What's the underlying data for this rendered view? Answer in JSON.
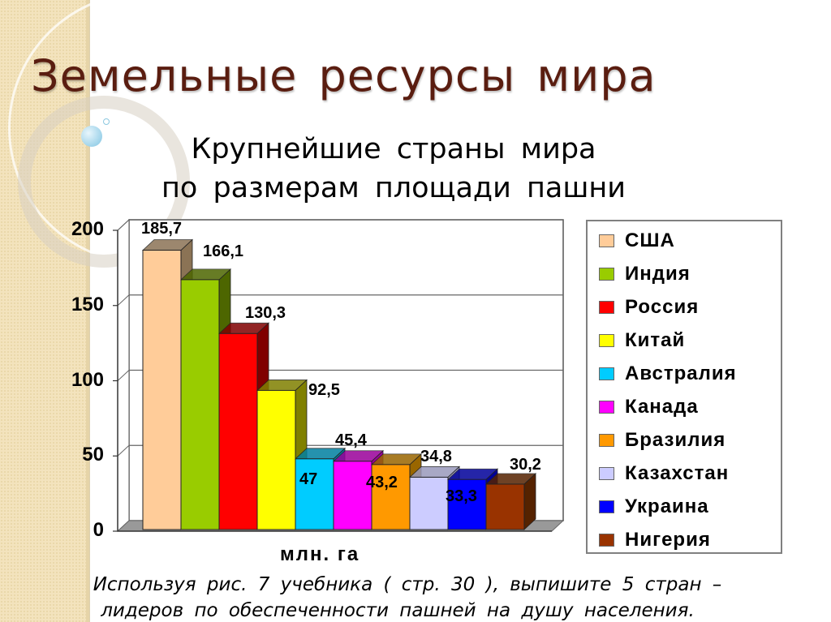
{
  "slide": {
    "title": "Земельные ресурсы мира",
    "subtitle_line1": "Крупнейшие страны мира",
    "subtitle_line2": "по размерам площади пашни",
    "caption_line1": "Используя рис. 7 учебника ( стр. 30 ), выпишите 5 стран –",
    "caption_line2": "лидеров по обеспеченности пашней на душу населения.",
    "title_color": "#5a1d10",
    "band_color": "#f3e3bd"
  },
  "chart_data": {
    "type": "bar",
    "title": "Крупнейшие страны мира по размерам площади пашни",
    "xlabel": "млн. га",
    "ylabel": "",
    "ylim": [
      0,
      200
    ],
    "yticks": [
      "0",
      "50",
      "100",
      "150",
      "200"
    ],
    "grid": true,
    "legend_position": "right",
    "style": "3d-clustered",
    "categories": [
      "США",
      "Индия",
      "Россия",
      "Китай",
      "Австралия",
      "Канада",
      "Бразилия",
      "Казахстан",
      "Украина",
      "Нигерия"
    ],
    "values": [
      185.7,
      166.1,
      130.3,
      92.5,
      47,
      45.4,
      43.2,
      34.8,
      33.3,
      30.2
    ],
    "value_labels": [
      "185,7",
      "166,1",
      "130,3",
      "92,5",
      "47",
      "45,4",
      "43,2",
      "34,8",
      "33,3",
      "30,2"
    ],
    "colors": [
      "#ffcc99",
      "#99cc00",
      "#ff0000",
      "#ffff00",
      "#00ccff",
      "#ff00ff",
      "#ff9900",
      "#ccccff",
      "#0000ff",
      "#993300"
    ],
    "side_colors": [
      "#8b7355",
      "#4d6600",
      "#800000",
      "#808000",
      "#0080a0",
      "#990099",
      "#996600",
      "#9999bb",
      "#000099",
      "#552200"
    ]
  }
}
